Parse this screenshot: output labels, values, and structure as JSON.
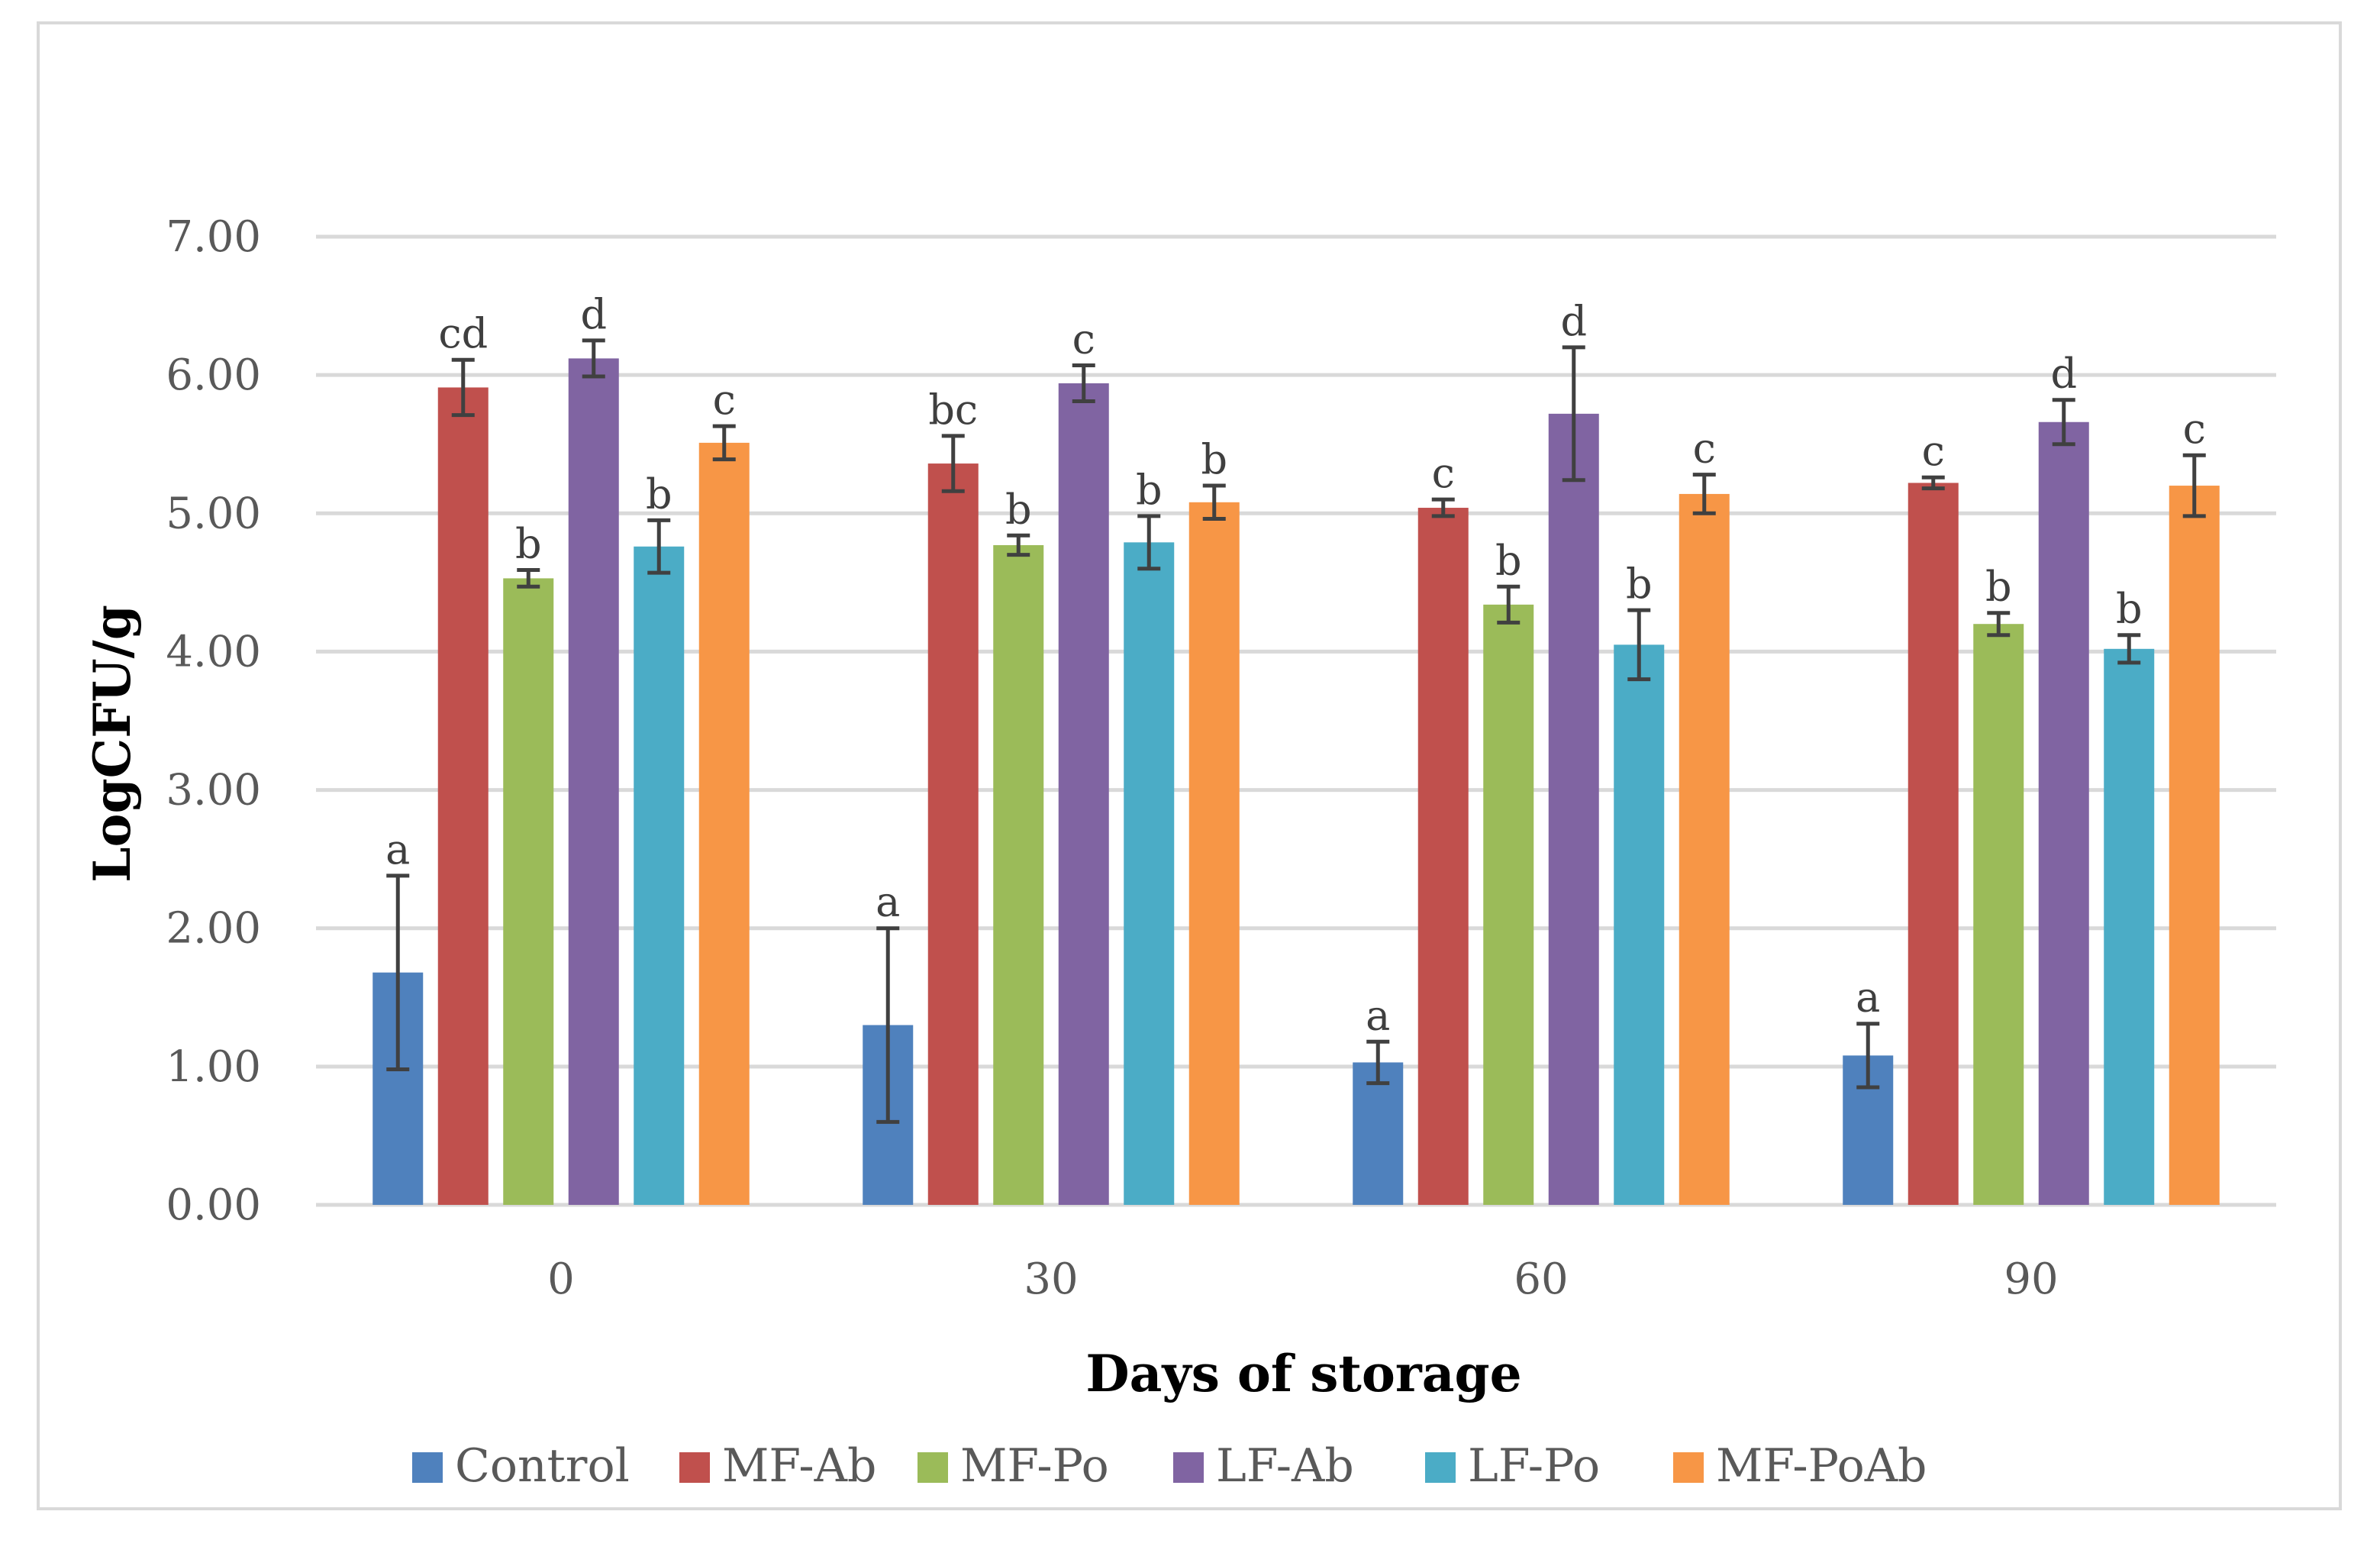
{
  "chart_data": {
    "type": "bar",
    "title": "",
    "xlabel": "Days of storage",
    "ylabel": "LogCFU/g",
    "ylim": [
      0,
      7
    ],
    "yticks": [
      "0.00",
      "1.00",
      "2.00",
      "3.00",
      "4.00",
      "5.00",
      "6.00",
      "7.00"
    ],
    "grid": true,
    "legend_position": "bottom",
    "categories": [
      "0",
      "30",
      "60",
      "90"
    ],
    "series": [
      {
        "name": "Control",
        "color": "#4f81bd",
        "values": [
          1.68,
          1.3,
          1.03,
          1.08
        ],
        "errors": [
          0.7,
          0.7,
          0.15,
          0.23
        ],
        "labels": [
          "a",
          "a",
          "a",
          "a"
        ]
      },
      {
        "name": "MF-Ab",
        "color": "#c0504d",
        "values": [
          5.91,
          5.36,
          5.04,
          5.22
        ],
        "errors": [
          0.2,
          0.2,
          0.06,
          0.04
        ],
        "labels": [
          "cd",
          "bc",
          "c",
          "c"
        ]
      },
      {
        "name": "MF-Po",
        "color": "#9bbb59",
        "values": [
          4.53,
          4.77,
          4.34,
          4.2
        ],
        "errors": [
          0.06,
          0.07,
          0.13,
          0.08
        ],
        "labels": [
          "b",
          "b",
          "b",
          "b"
        ]
      },
      {
        "name": "LF-Ab",
        "color": "#8064a2",
        "values": [
          6.12,
          5.94,
          5.72,
          5.66
        ],
        "errors": [
          0.13,
          0.13,
          0.48,
          0.16
        ],
        "labels": [
          "d",
          "c",
          "d",
          "d"
        ]
      },
      {
        "name": "LF-Po",
        "color": "#4bacc6",
        "values": [
          4.76,
          4.79,
          4.05,
          4.02
        ],
        "errors": [
          0.19,
          0.19,
          0.25,
          0.1
        ],
        "labels": [
          "b",
          "b",
          "b",
          "b"
        ]
      },
      {
        "name": "MF-PoAb",
        "color": "#f79646",
        "values": [
          5.51,
          5.08,
          5.14,
          5.2
        ],
        "errors": [
          0.12,
          0.12,
          0.14,
          0.22
        ],
        "labels": [
          "c",
          "b",
          "c",
          "c"
        ]
      }
    ]
  }
}
